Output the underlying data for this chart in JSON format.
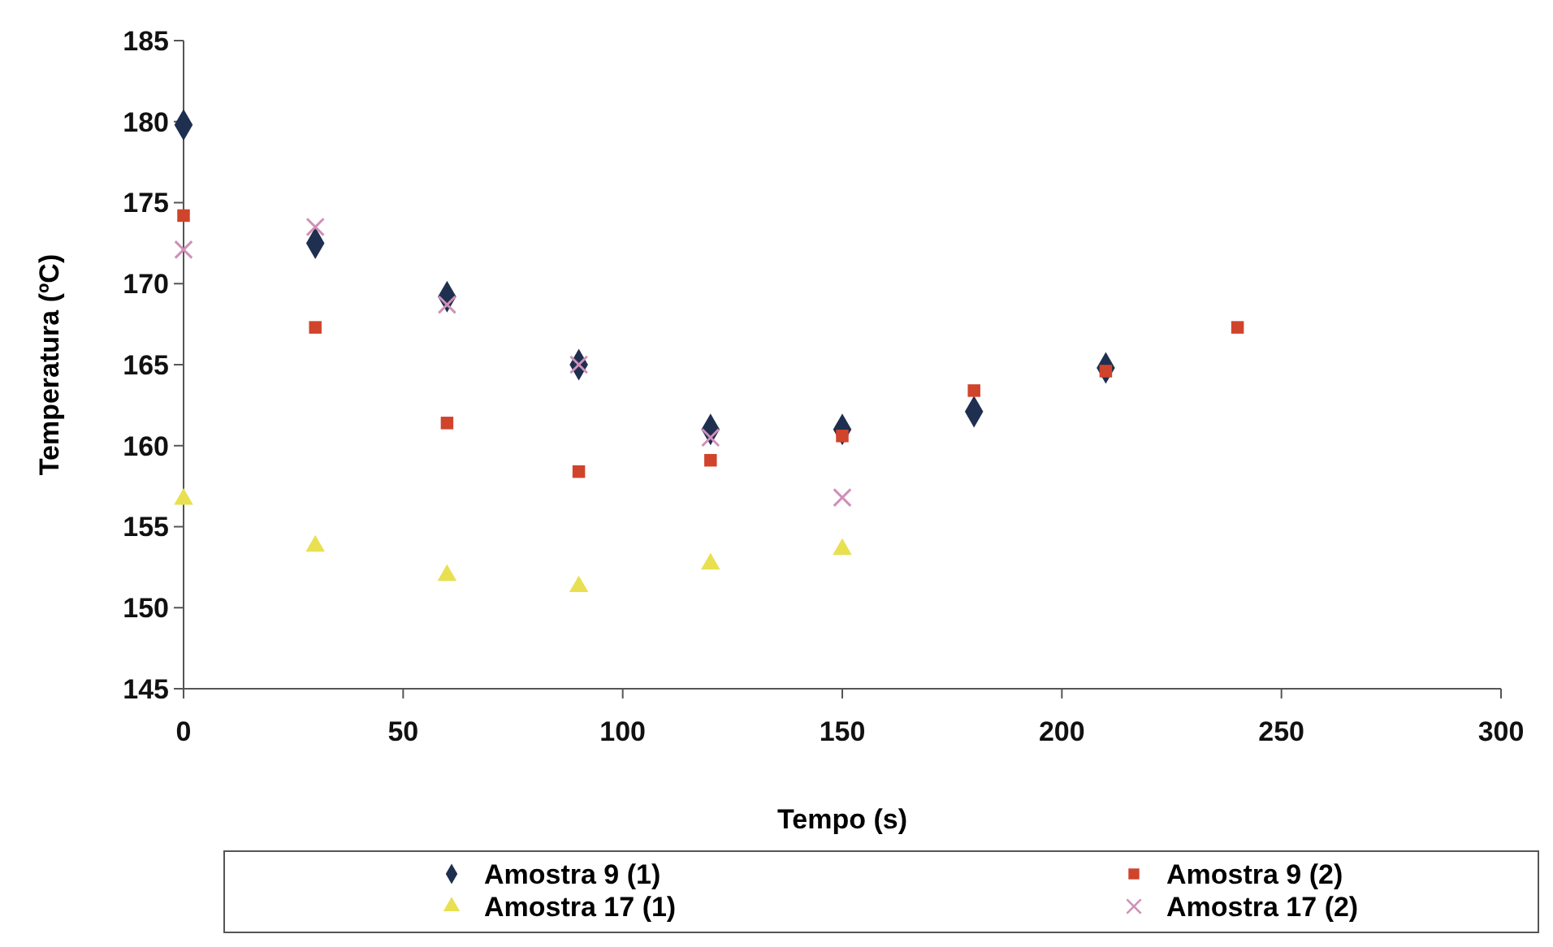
{
  "chart_data": {
    "type": "scatter",
    "xlabel": "Tempo (s)",
    "ylabel": "Temperatura (ºC)",
    "xlim": [
      0,
      300
    ],
    "xticks": [
      0,
      50,
      100,
      150,
      200,
      250,
      300
    ],
    "ylim": [
      145,
      185
    ],
    "yticks": [
      145,
      150,
      155,
      160,
      165,
      170,
      175,
      180,
      185
    ],
    "grid": false,
    "legend": "bottom",
    "series": [
      {
        "name": "Amostra 9 (1)",
        "color": "#1f2f4f",
        "marker": "diamond",
        "x": [
          0,
          30,
          60,
          90,
          120,
          150,
          180,
          210
        ],
        "values": [
          179.8,
          172.5,
          169.2,
          165,
          161,
          161,
          162.1,
          164.8
        ]
      },
      {
        "name": "Amostra 9 (2)",
        "color": "#d0442c",
        "marker": "square",
        "x": [
          0,
          30,
          60,
          90,
          120,
          150,
          180,
          210,
          240
        ],
        "values": [
          174.2,
          167.3,
          161.4,
          158.4,
          159.1,
          160.6,
          163.4,
          164.6,
          167.3
        ]
      },
      {
        "name": "Amostra 17 (1)",
        "color": "#e8e050",
        "marker": "triangle",
        "x": [
          0,
          30,
          60,
          90,
          120,
          150
        ],
        "values": [
          156.7,
          153.8,
          152,
          151.3,
          152.7,
          153.6
        ]
      },
      {
        "name": "Amostra 17 (2)",
        "color": "#d090b8",
        "marker": "cross",
        "x": [
          0,
          30,
          60,
          90,
          120,
          150
        ],
        "values": [
          172.1,
          173.5,
          168.7,
          165,
          160.5,
          156.8
        ]
      }
    ]
  }
}
